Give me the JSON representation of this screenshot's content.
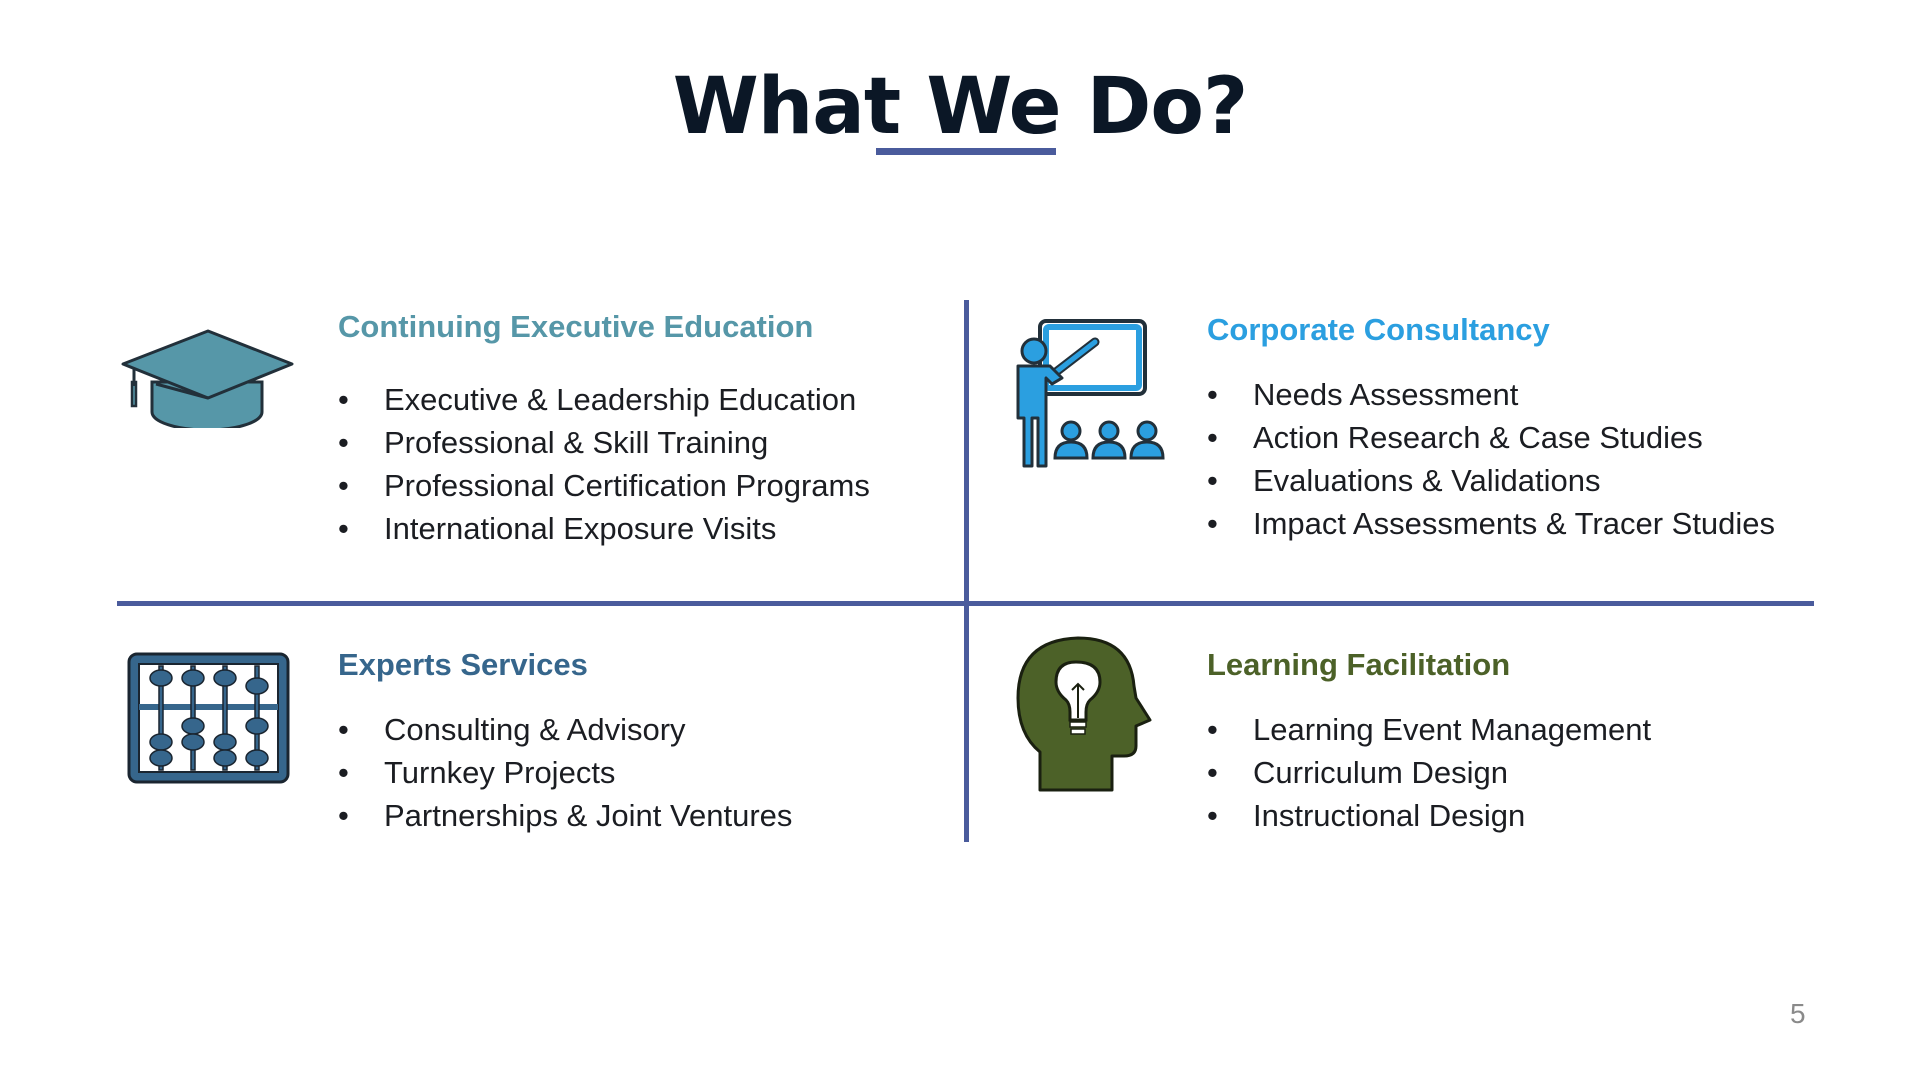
{
  "slide": {
    "title": "What We Do?",
    "page_number": "5"
  },
  "colors": {
    "title": "#0b1726",
    "divider": "#4a5b9c",
    "continuing_executive_education": "#5697a8",
    "corporate_consultancy": "#2b9fe0",
    "experts_services": "#36668c",
    "learning_facilitation": "#4c6128"
  },
  "quadrants": [
    {
      "title": "Continuing Executive Education",
      "icon": "graduation-cap-icon",
      "items": [
        "Executive & Leadership Education",
        "Professional & Skill Training",
        "Professional Certification Programs",
        "International Exposure Visits"
      ]
    },
    {
      "title": "Corporate Consultancy",
      "icon": "presentation-teacher-icon",
      "items": [
        "Needs Assessment",
        "Action Research & Case Studies",
        "Evaluations & Validations",
        "Impact Assessments & Tracer Studies"
      ]
    },
    {
      "title": "Experts Services",
      "icon": "abacus-icon",
      "items": [
        "Consulting & Advisory",
        "Turnkey Projects",
        "Partnerships & Joint Ventures"
      ]
    },
    {
      "title": "Learning Facilitation",
      "icon": "head-lightbulb-icon",
      "items": [
        "Learning Event Management",
        "Curriculum Design",
        "Instructional Design"
      ]
    }
  ]
}
